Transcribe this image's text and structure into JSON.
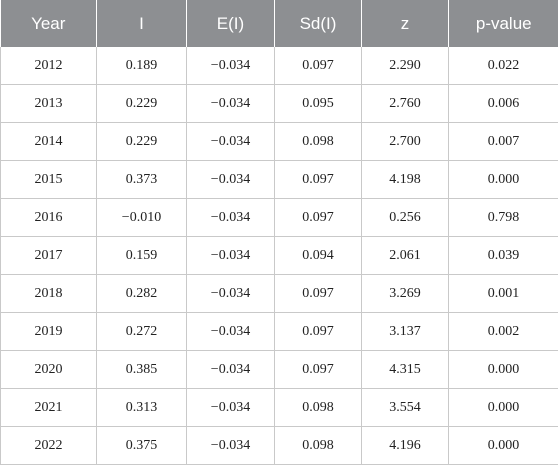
{
  "table": {
    "headers": [
      "Year",
      "I",
      "E(I)",
      "Sd(I)",
      "z",
      "p-value"
    ],
    "rows": [
      [
        "2012",
        "0.189",
        "−0.034",
        "0.097",
        "2.290",
        "0.022"
      ],
      [
        "2013",
        "0.229",
        "−0.034",
        "0.095",
        "2.760",
        "0.006"
      ],
      [
        "2014",
        "0.229",
        "−0.034",
        "0.098",
        "2.700",
        "0.007"
      ],
      [
        "2015",
        "0.373",
        "−0.034",
        "0.097",
        "4.198",
        "0.000"
      ],
      [
        "2016",
        "−0.010",
        "−0.034",
        "0.097",
        "0.256",
        "0.798"
      ],
      [
        "2017",
        "0.159",
        "−0.034",
        "0.094",
        "2.061",
        "0.039"
      ],
      [
        "2018",
        "0.282",
        "−0.034",
        "0.097",
        "3.269",
        "0.001"
      ],
      [
        "2019",
        "0.272",
        "−0.034",
        "0.097",
        "3.137",
        "0.002"
      ],
      [
        "2020",
        "0.385",
        "−0.034",
        "0.097",
        "4.315",
        "0.000"
      ],
      [
        "2021",
        "0.313",
        "−0.034",
        "0.098",
        "3.554",
        "0.000"
      ],
      [
        "2022",
        "0.375",
        "−0.034",
        "0.098",
        "4.196",
        "0.000"
      ]
    ]
  },
  "colors": {
    "header_background": "#8d8f92",
    "header_text": "#ffffff",
    "grid_line": "#c9c9c9"
  }
}
